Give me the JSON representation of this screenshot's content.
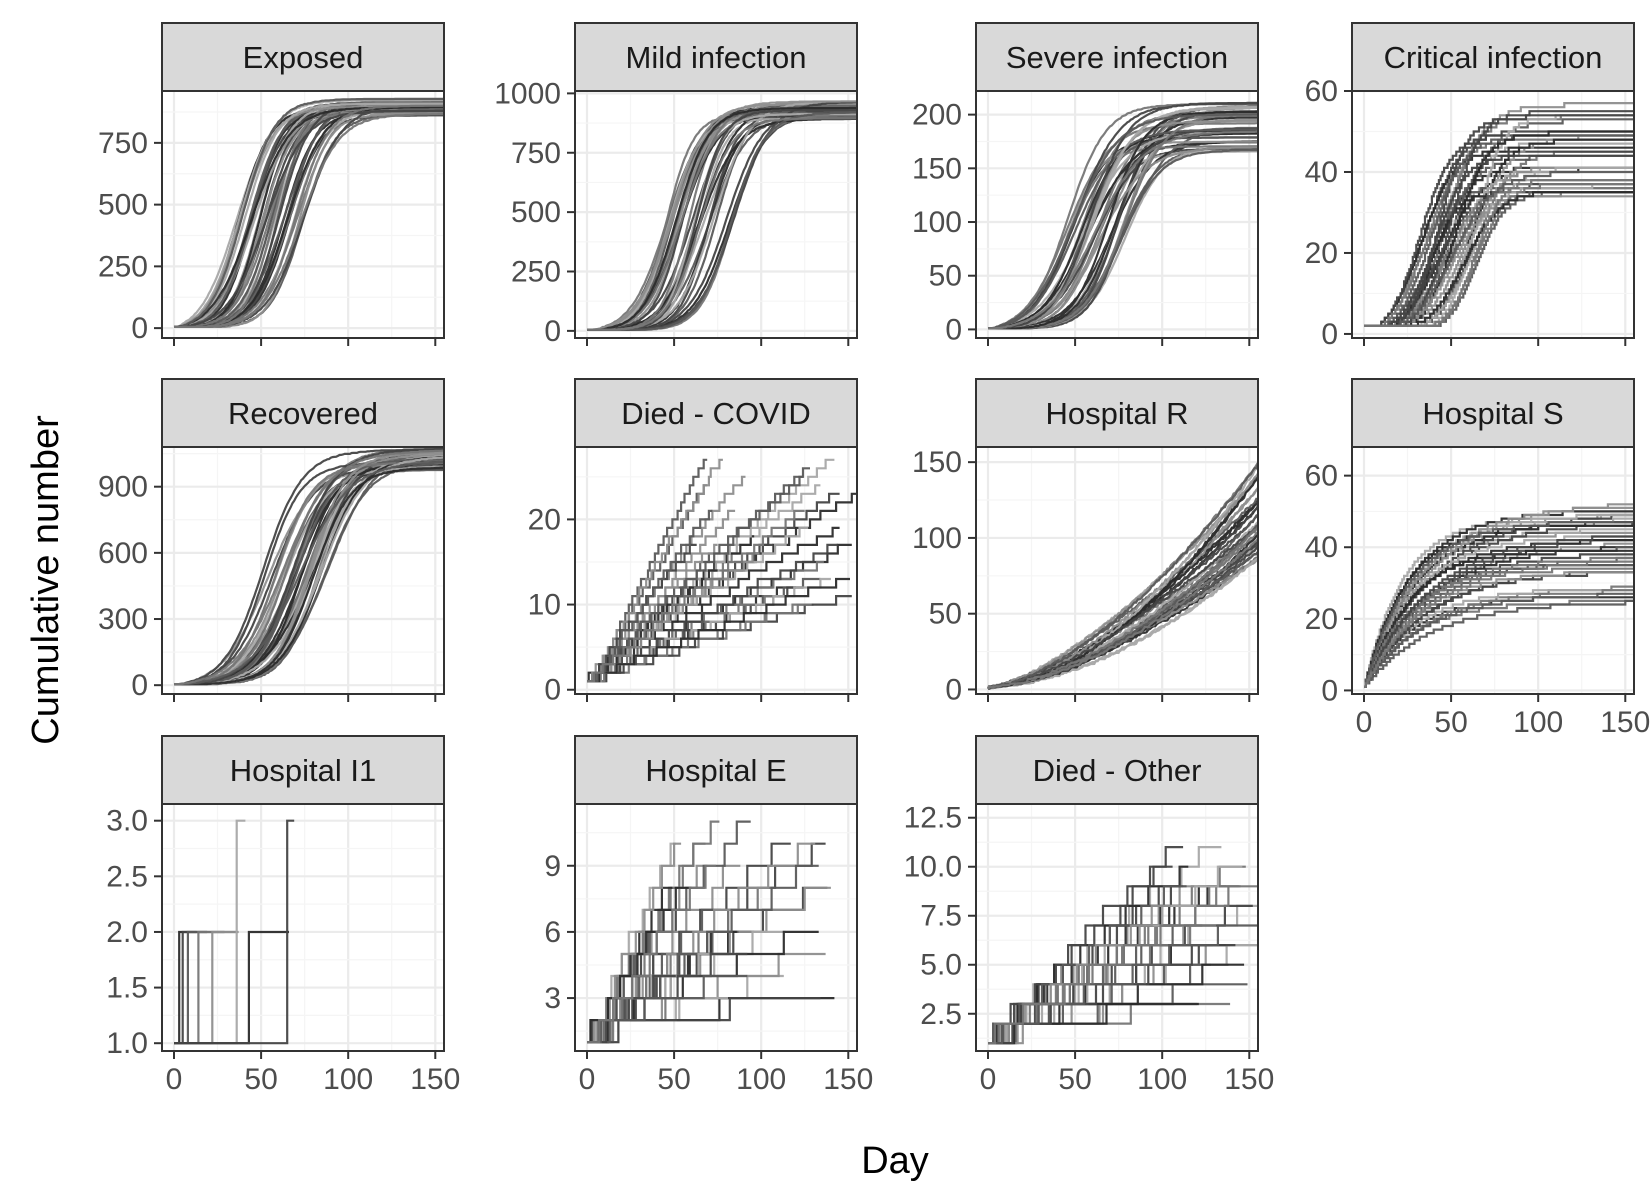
{
  "chart_data": {
    "type": "line",
    "layout": "facet grid, 3 rows x 4 columns, free y scales, shared x scale",
    "xlabel": "Day",
    "ylabel": "Cumulative number",
    "xlim": [
      0,
      155
    ],
    "x_ticks": [
      0,
      50,
      100,
      150
    ],
    "x_tick_labels": [
      "0",
      "50",
      "100",
      "150"
    ],
    "grid": true,
    "legend": "none",
    "series_count_per_panel": 40,
    "colors": {
      "line_shades": [
        "#2b2b2b",
        "#444444",
        "#5a5a5a",
        "#767676",
        "#8e8e8e",
        "#a8a8a8"
      ],
      "strip_fill": "#d9d9d9",
      "strip_border": "#333333",
      "panel_border": "#333333",
      "grid_major": "#ebebeb",
      "grid_minor": "#f5f5f5",
      "tick_label": "#4d4d4d"
    },
    "panels": [
      {
        "title": "Exposed",
        "row": 0,
        "col": 0,
        "ylim": [
          -40,
          960
        ],
        "y_ticks": [
          0,
          250,
          500,
          750
        ],
        "y_tick_labels": [
          "0",
          "250",
          "500",
          "750"
        ],
        "shape": "logistic",
        "final_range": [
          860,
          930
        ],
        "midpoint_range": [
          35,
          75
        ],
        "rate_range": [
          0.09,
          0.13
        ],
        "start": 5,
        "step": false
      },
      {
        "title": "Mild infection",
        "row": 0,
        "col": 1,
        "ylim": [
          -30,
          1010
        ],
        "y_ticks": [
          0,
          250,
          500,
          750,
          1000
        ],
        "y_tick_labels": [
          "0",
          "250",
          "500",
          "750",
          "1000"
        ],
        "shape": "logistic",
        "final_range": [
          890,
          970
        ],
        "midpoint_range": [
          45,
          85
        ],
        "rate_range": [
          0.09,
          0.13
        ],
        "start": 5,
        "step": false
      },
      {
        "title": "Severe infection",
        "row": 0,
        "col": 2,
        "ylim": [
          -8,
          222
        ],
        "y_ticks": [
          0,
          50,
          100,
          150,
          200
        ],
        "y_tick_labels": [
          "0",
          "50",
          "100",
          "150",
          "200"
        ],
        "shape": "logistic",
        "final_range": [
          165,
          212
        ],
        "midpoint_range": [
          45,
          80
        ],
        "rate_range": [
          0.07,
          0.1
        ],
        "start": 1,
        "step": false
      },
      {
        "title": "Critical infection",
        "row": 0,
        "col": 3,
        "ylim": [
          -1,
          60
        ],
        "y_ticks": [
          0,
          20,
          40,
          60
        ],
        "y_tick_labels": [
          "0",
          "20",
          "40",
          "60"
        ],
        "shape": "logistic",
        "final_range": [
          33,
          57
        ],
        "midpoint_range": [
          30,
          65
        ],
        "rate_range": [
          0.08,
          0.13
        ],
        "start": 2,
        "step": true
      },
      {
        "title": "Recovered",
        "row": 1,
        "col": 0,
        "ylim": [
          -40,
          1080
        ],
        "y_ticks": [
          0,
          300,
          600,
          900
        ],
        "y_tick_labels": [
          "0",
          "300",
          "600",
          "900"
        ],
        "shape": "logistic_rising",
        "final_range": [
          950,
          1050
        ],
        "midpoint_range": [
          50,
          90
        ],
        "rate_range": [
          0.07,
          0.1
        ],
        "start": 5,
        "step": false
      },
      {
        "title": "Died - COVID",
        "row": 1,
        "col": 1,
        "ylim": [
          -0.5,
          28.5
        ],
        "y_ticks": [
          0,
          10,
          20
        ],
        "y_tick_labels": [
          "0",
          "10",
          "20"
        ],
        "shape": "linear_capped",
        "final_range": [
          10,
          27
        ],
        "end_range": [
          55,
          155
        ],
        "start": 1,
        "step": true
      },
      {
        "title": "Hospital R",
        "row": 1,
        "col": 2,
        "ylim": [
          -3,
          160
        ],
        "y_ticks": [
          0,
          50,
          100,
          150
        ],
        "y_tick_labels": [
          "0",
          "50",
          "100",
          "150"
        ],
        "shape": "power",
        "final_range": [
          85,
          150
        ],
        "exponent_range": [
          1.4,
          1.8
        ],
        "start": 1,
        "step": false
      },
      {
        "title": "Hospital S",
        "row": 1,
        "col": 3,
        "ylim": [
          -1,
          68
        ],
        "y_ticks": [
          0,
          20,
          40,
          60
        ],
        "y_tick_labels": [
          "0",
          "20",
          "40",
          "60"
        ],
        "shape": "saturating",
        "final_range": [
          23,
          52
        ],
        "rate_range": [
          0.025,
          0.045
        ],
        "start": 1,
        "step": true
      },
      {
        "title": "Hospital I1",
        "row": 2,
        "col": 0,
        "ylim": [
          0.93,
          3.15
        ],
        "y_ticks": [
          1.0,
          1.5,
          2.0,
          2.5,
          3.0
        ],
        "y_tick_labels": [
          "1.0",
          "1.5",
          "2.0",
          "2.5",
          "3.0"
        ],
        "shape": "i1_steps",
        "step": true
      },
      {
        "title": "Hospital E",
        "row": 2,
        "col": 1,
        "ylim": [
          0.6,
          11.8
        ],
        "y_ticks": [
          3,
          6,
          9
        ],
        "y_tick_labels": [
          "3",
          "6",
          "9"
        ],
        "shape": "linear_capped",
        "final_range": [
          3,
          11
        ],
        "end_range": [
          40,
          150
        ],
        "start": 1,
        "step": true
      },
      {
        "title": "Died - Other",
        "row": 2,
        "col": 2,
        "ylim": [
          0.6,
          13.2
        ],
        "y_ticks": [
          2.5,
          5.0,
          7.5,
          10.0,
          12.5
        ],
        "y_tick_labels": [
          "2.5",
          "5.0",
          "7.5",
          "10.0",
          "12.5"
        ],
        "shape": "linear_capped",
        "final_range": [
          3,
          11
        ],
        "end_range": [
          100,
          155
        ],
        "start": 1,
        "step": true
      }
    ]
  }
}
